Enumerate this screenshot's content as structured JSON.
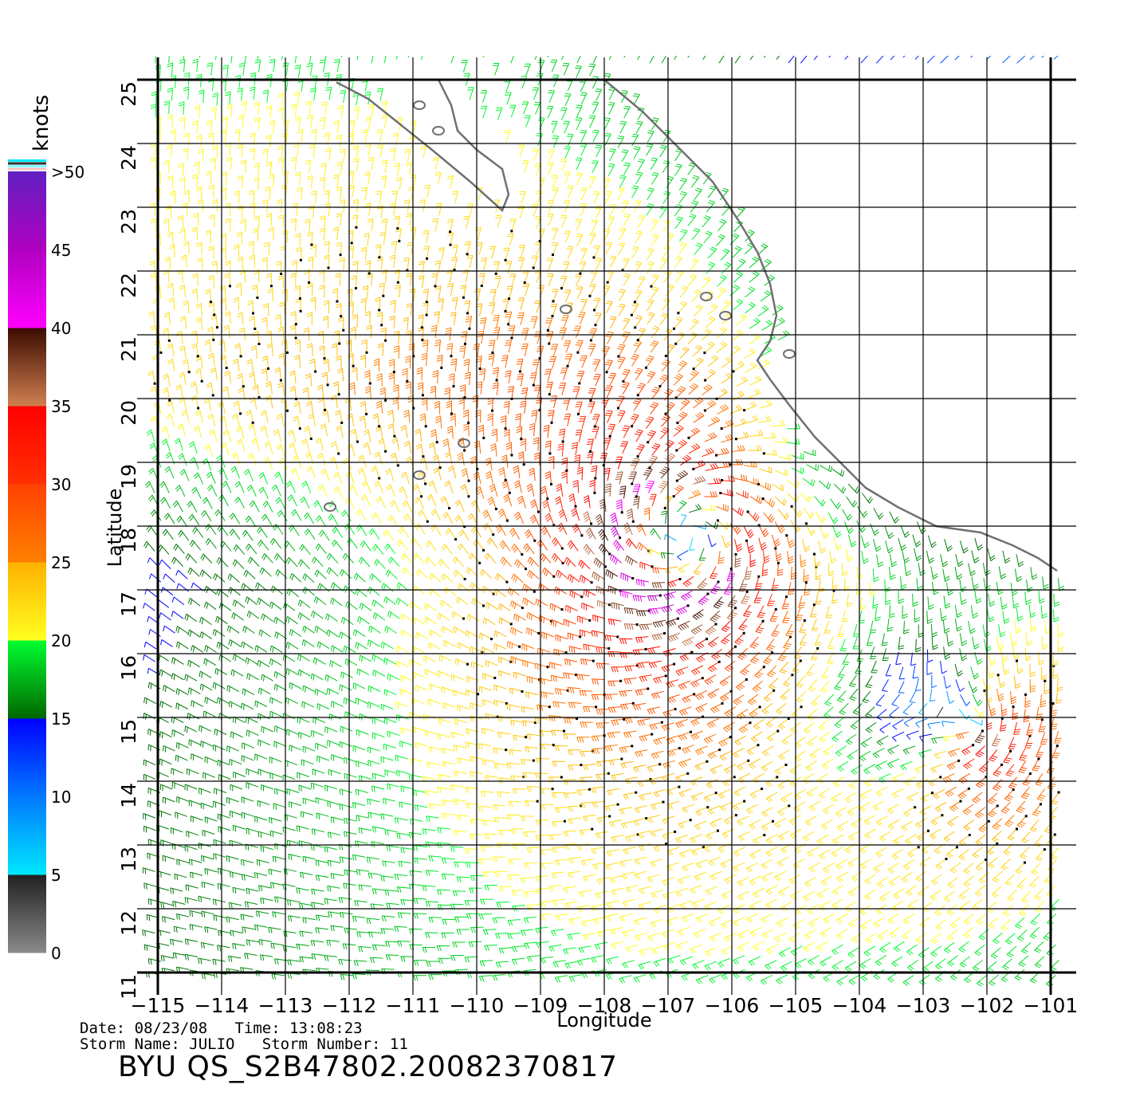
{
  "map": {
    "xlabel": "Longitude",
    "ylabel": "Latitude",
    "lon_range": [
      -115,
      -100.5
    ],
    "lat_range": [
      11,
      25
    ],
    "lon_ticks": [
      "-115",
      "-114",
      "-113",
      "-112",
      "-111",
      "-110",
      "-109",
      "-108",
      "-107",
      "-106",
      "-105",
      "-104",
      "-103",
      "-102",
      "-101"
    ],
    "lat_ticks": [
      "11",
      "12",
      "13",
      "14",
      "15",
      "16",
      "17",
      "18",
      "19",
      "20",
      "21",
      "22",
      "23",
      "24",
      "25"
    ],
    "storm_center": {
      "lon": -106.8,
      "lat": 17.8
    },
    "coast_color": "#707070",
    "grid_color": "#000000"
  },
  "legend": {
    "unit": "knots",
    "labels": [
      "0",
      "5",
      "10",
      "15",
      "20",
      "25",
      "30",
      "35",
      "40",
      "45",
      ">50"
    ],
    "bands": [
      {
        "min": 0,
        "max": 5,
        "colors": [
          "#8a8a8a",
          "#202020"
        ]
      },
      {
        "min": 5,
        "max": 10,
        "colors": [
          "#00e8ff",
          "#0078ff"
        ]
      },
      {
        "min": 10,
        "max": 15,
        "colors": [
          "#0078ff",
          "#0000ff"
        ]
      },
      {
        "min": 15,
        "max": 20,
        "colors": [
          "#006600",
          "#00ff30"
        ]
      },
      {
        "min": 20,
        "max": 25,
        "colors": [
          "#ffff20",
          "#ffb000"
        ]
      },
      {
        "min": 25,
        "max": 30,
        "colors": [
          "#ff8000",
          "#ff4000"
        ]
      },
      {
        "min": 30,
        "max": 35,
        "colors": [
          "#ff3000",
          "#ff0000"
        ]
      },
      {
        "min": 35,
        "max": 40,
        "colors": [
          "#d08050",
          "#3a0a00"
        ]
      },
      {
        "min": 40,
        "max": 45,
        "colors": [
          "#ff00ff",
          "#b000c0"
        ]
      },
      {
        "min": 45,
        "max": 50,
        "colors": [
          "#b000c0",
          "#6020c0"
        ]
      }
    ],
    "top_stripes": [
      "#00e8ff",
      "#303030",
      "#80ffff",
      "#ffc0c0"
    ]
  },
  "info": {
    "line1": "Date: 08/23/08   Time: 13:08:23",
    "line2": "Storm Name: JULIO   Storm Number: 11",
    "product": "BYU QS_S2B47802.20082370817"
  }
}
